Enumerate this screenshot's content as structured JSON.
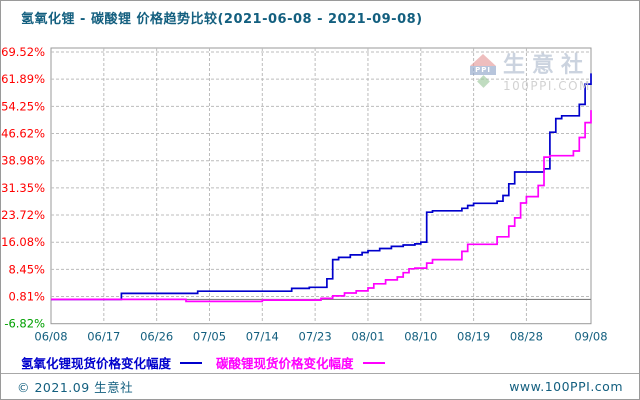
{
  "title": "氢氧化锂 - 碳酸锂 价格趋势比较(2021-06-08 - 2021-09-08)",
  "watermark": {
    "logo_text": "PPI",
    "brand": "生意社",
    "site": "100PPI.COM"
  },
  "legend": [
    {
      "label": "氢氧化锂现货价格变化幅度",
      "color": "#0000cc"
    },
    {
      "label": "碳酸锂现货价格变化幅度",
      "color": "#ff00ff"
    }
  ],
  "footer": {
    "left": "© 2021.09 生意社",
    "right": "www.100PPI.com"
  },
  "colors": {
    "title_teal": "#135f7f",
    "x_label": "#135f7f",
    "y_label_positive": "#ff0000",
    "y_label_negative": "#00a000",
    "grid": "#bcbcbc",
    "plot_border": "#999999",
    "zero_line": "#808080",
    "series_hydroxide": "#0000cc",
    "series_carbonate": "#ff00ff"
  },
  "chart_data": {
    "type": "line",
    "title": "氢氧化锂 - 碳酸锂 价格趋势比较(2021-06-08 - 2021-09-08)",
    "x_range_days": 92,
    "x_ticks": [
      "06/08",
      "06/17",
      "06/26",
      "07/05",
      "07/14",
      "07/23",
      "08/01",
      "08/10",
      "08/19",
      "08/28",
      "09/08"
    ],
    "y_ticks": [
      {
        "label": "69.52%",
        "value": 69.52
      },
      {
        "label": "61.89%",
        "value": 61.89
      },
      {
        "label": "54.25%",
        "value": 54.25
      },
      {
        "label": "46.62%",
        "value": 46.62
      },
      {
        "label": "38.98%",
        "value": 38.98
      },
      {
        "label": "31.35%",
        "value": 31.35
      },
      {
        "label": "23.72%",
        "value": 23.72
      },
      {
        "label": "16.08%",
        "value": 16.08
      },
      {
        "label": "8.45%",
        "value": 8.45
      },
      {
        "label": "0.81%",
        "value": 0.81
      },
      {
        "label": "-6.82%",
        "value": -6.82
      }
    ],
    "ylim": [
      -6.82,
      70.65
    ],
    "grid": true,
    "legend_position": "bottom",
    "interpolation": "step-after",
    "unit": "percent change",
    "series": [
      {
        "name": "氢氧化锂现货价格变化幅度",
        "color": "#0000cc",
        "points": [
          [
            "06/08",
            0.0
          ],
          [
            "06/20",
            1.7
          ],
          [
            "07/03",
            2.3
          ],
          [
            "07/19",
            3.1
          ],
          [
            "07/22",
            3.4
          ],
          [
            "07/25",
            5.8
          ],
          [
            "07/26",
            11.2
          ],
          [
            "07/27",
            11.8
          ],
          [
            "07/29",
            12.5
          ],
          [
            "07/31",
            13.2
          ],
          [
            "08/01",
            13.7
          ],
          [
            "08/03",
            14.3
          ],
          [
            "08/05",
            14.9
          ],
          [
            "08/07",
            15.3
          ],
          [
            "08/09",
            15.6
          ],
          [
            "08/10",
            16.1
          ],
          [
            "08/11",
            24.5
          ],
          [
            "08/12",
            24.9
          ],
          [
            "08/17",
            25.6
          ],
          [
            "08/18",
            26.4
          ],
          [
            "08/19",
            27.0
          ],
          [
            "08/23",
            27.6
          ],
          [
            "08/24",
            29.2
          ],
          [
            "08/25",
            32.5
          ],
          [
            "08/26",
            35.8
          ],
          [
            "08/31",
            36.7
          ],
          [
            "09/01",
            47.0
          ],
          [
            "09/02",
            50.8
          ],
          [
            "09/03",
            51.6
          ],
          [
            "09/06",
            54.8
          ],
          [
            "09/07",
            60.5
          ],
          [
            "09/08",
            63.5
          ]
        ]
      },
      {
        "name": "碳酸锂现货价格变化幅度",
        "color": "#ff00ff",
        "points": [
          [
            "06/08",
            0.0
          ],
          [
            "07/01",
            -0.55
          ],
          [
            "07/14",
            -0.2
          ],
          [
            "07/24",
            0.3
          ],
          [
            "07/26",
            1.0
          ],
          [
            "07/28",
            1.8
          ],
          [
            "07/30",
            2.4
          ],
          [
            "08/01",
            3.2
          ],
          [
            "08/02",
            4.4
          ],
          [
            "08/04",
            5.5
          ],
          [
            "08/06",
            6.3
          ],
          [
            "08/07",
            7.5
          ],
          [
            "08/08",
            8.6
          ],
          [
            "08/09",
            8.8
          ],
          [
            "08/11",
            10.2
          ],
          [
            "08/12",
            11.2
          ],
          [
            "08/17",
            13.5
          ],
          [
            "08/18",
            15.5
          ],
          [
            "08/23",
            17.6
          ],
          [
            "08/25",
            20.6
          ],
          [
            "08/26",
            22.9
          ],
          [
            "08/27",
            27.1
          ],
          [
            "08/28",
            28.9
          ],
          [
            "08/30",
            32.0
          ],
          [
            "08/31",
            40.0
          ],
          [
            "09/01",
            40.4
          ],
          [
            "09/05",
            41.7
          ],
          [
            "09/06",
            45.5
          ],
          [
            "09/07",
            49.7
          ],
          [
            "09/08",
            53.2
          ]
        ]
      }
    ]
  }
}
